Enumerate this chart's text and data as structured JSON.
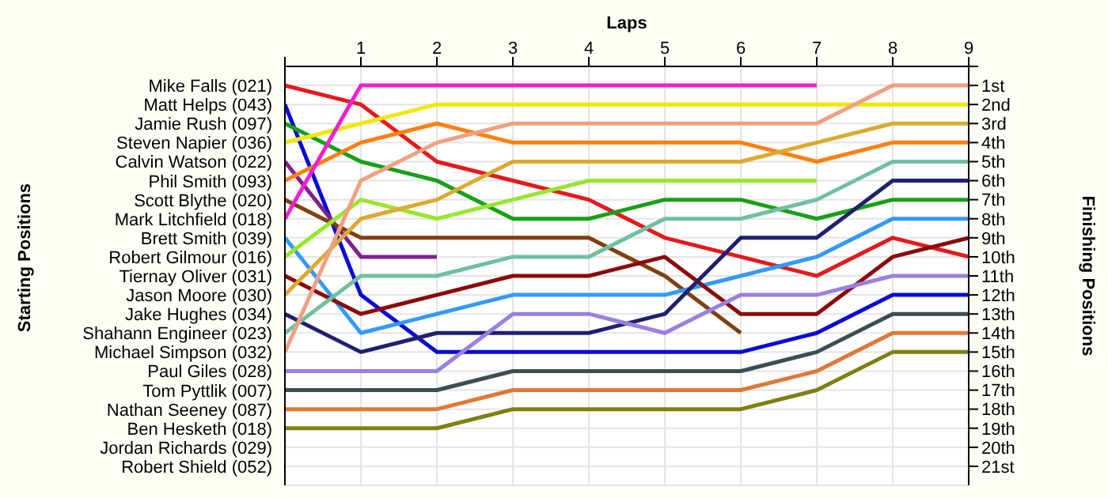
{
  "chart_data": {
    "type": "line",
    "xlabel": "Laps",
    "ylabel": "Finishing Positions",
    "annotations": [
      "Starting Positions",
      "Jordan Richards (029)",
      "Robert Shield (052)"
    ],
    "legend": false,
    "x": [
      0,
      1,
      2,
      3,
      4,
      5,
      6,
      7,
      8,
      9
    ],
    "xlim": [
      0,
      9
    ],
    "xticks": [
      {
        "value": 0,
        "label": null
      },
      1,
      2,
      3,
      4,
      5,
      6,
      7,
      8,
      9
    ],
    "ylim": [
      22,
      0
    ],
    "yticks": [
      {
        "value": 0,
        "label": null
      },
      {
        "value": 1,
        "label": "1st"
      },
      {
        "value": 2,
        "label": "2nd"
      },
      {
        "value": 3,
        "label": "3rd"
      },
      {
        "value": 4,
        "label": "4th"
      },
      {
        "value": 5,
        "label": "5th"
      },
      {
        "value": 6,
        "label": "6th"
      },
      {
        "value": 7,
        "label": "7th"
      },
      {
        "value": 8,
        "label": "8th"
      },
      {
        "value": 9,
        "label": "9th"
      },
      {
        "value": 10,
        "label": "10th"
      },
      {
        "value": 11,
        "label": "11th"
      },
      {
        "value": 12,
        "label": "12th"
      },
      {
        "value": 13,
        "label": "13th"
      },
      {
        "value": 14,
        "label": "14th"
      },
      {
        "value": 15,
        "label": "15th"
      },
      {
        "value": 16,
        "label": "16th"
      },
      {
        "value": 17,
        "label": "17th"
      },
      {
        "value": 18,
        "label": "18th"
      },
      {
        "value": 19,
        "label": "19th"
      },
      {
        "value": 20,
        "label": "20th"
      },
      {
        "value": 21,
        "label": "21st"
      }
    ],
    "grid": true,
    "marker": "none",
    "line_style": "solid",
    "series": [
      {
        "name": "Mike Falls (021)",
        "color": "#e41a1c",
        "values": [
          1,
          2,
          5,
          6,
          7,
          9,
          10,
          11,
          9,
          10
        ]
      },
      {
        "name": "Matt Helps (043)",
        "color": "#0a0ad8",
        "values": [
          2,
          12,
          15,
          15,
          15,
          15,
          15,
          14,
          12,
          12
        ]
      },
      {
        "name": "Jamie Rush (097)",
        "color": "#18a018",
        "values": [
          3,
          5,
          6,
          8,
          8,
          7,
          7,
          8,
          7,
          7
        ]
      },
      {
        "name": "Steven Napier (036)",
        "color": "#f0e800",
        "values": [
          4,
          3,
          2,
          2,
          2,
          2,
          2,
          2,
          2,
          2
        ]
      },
      {
        "name": "Calvin Watson (022)",
        "color": "#7f1f8f",
        "values": [
          5,
          10,
          10,
          null,
          null,
          null,
          null,
          null,
          null,
          null
        ]
      },
      {
        "name": "Phil Smith (093)",
        "color": "#ff8010",
        "values": [
          6,
          4,
          3,
          4,
          4,
          4,
          4,
          5,
          4,
          4
        ]
      },
      {
        "name": "Scott Blythe (020)",
        "color": "#804010",
        "values": [
          7,
          9,
          9,
          9,
          9,
          11,
          14,
          null,
          null,
          null
        ]
      },
      {
        "name": "Mark Litchfield (018)",
        "color": "#f020d0",
        "values": [
          8,
          1,
          1,
          1,
          1,
          1,
          1,
          1,
          null,
          null
        ]
      },
      {
        "name": "Brett Smith (039)",
        "color": "#3399ff",
        "values": [
          9,
          14,
          13,
          12,
          12,
          12,
          11,
          10,
          8,
          8
        ]
      },
      {
        "name": "Robert Gilmour (016)",
        "color": "#99e630",
        "values": [
          10,
          7,
          8,
          7,
          6,
          6,
          6,
          6,
          null,
          null
        ]
      },
      {
        "name": "Tiernay Oliver (031)",
        "color": "#8b0a0a",
        "values": [
          11,
          13,
          12,
          11,
          11,
          10,
          13,
          13,
          10,
          9
        ]
      },
      {
        "name": "Jason Moore (030)",
        "color": "#dcaa30",
        "values": [
          12,
          8,
          7,
          5,
          5,
          5,
          5,
          4,
          3,
          3
        ]
      },
      {
        "name": "Jake Hughes (034)",
        "color": "#202070",
        "values": [
          13,
          15,
          14,
          14,
          14,
          13,
          9,
          9,
          6,
          6
        ]
      },
      {
        "name": "Shahann Engineer (023)",
        "color": "#70c0a0",
        "values": [
          14,
          11,
          11,
          10,
          10,
          8,
          8,
          7,
          5,
          5
        ]
      },
      {
        "name": "Michael Simpson (032)",
        "color": "#f0a080",
        "values": [
          15,
          6,
          4,
          3,
          3,
          3,
          3,
          3,
          1,
          1
        ]
      },
      {
        "name": "Paul Giles (028)",
        "color": "#9a80e0",
        "values": [
          16,
          16,
          16,
          13,
          13,
          14,
          12,
          12,
          11,
          11
        ]
      },
      {
        "name": "Tom Pyttlik (007)",
        "color": "#3a5050",
        "values": [
          17,
          17,
          17,
          16,
          16,
          16,
          16,
          15,
          13,
          13
        ]
      },
      {
        "name": "Nathan Seeney (087)",
        "color": "#e07838",
        "values": [
          18,
          18,
          18,
          17,
          17,
          17,
          17,
          16,
          14,
          14
        ]
      },
      {
        "name": "Ben Hesketh (018)",
        "color": "#808010",
        "values": [
          19,
          19,
          19,
          18,
          18,
          18,
          18,
          17,
          15,
          15
        ]
      }
    ]
  }
}
